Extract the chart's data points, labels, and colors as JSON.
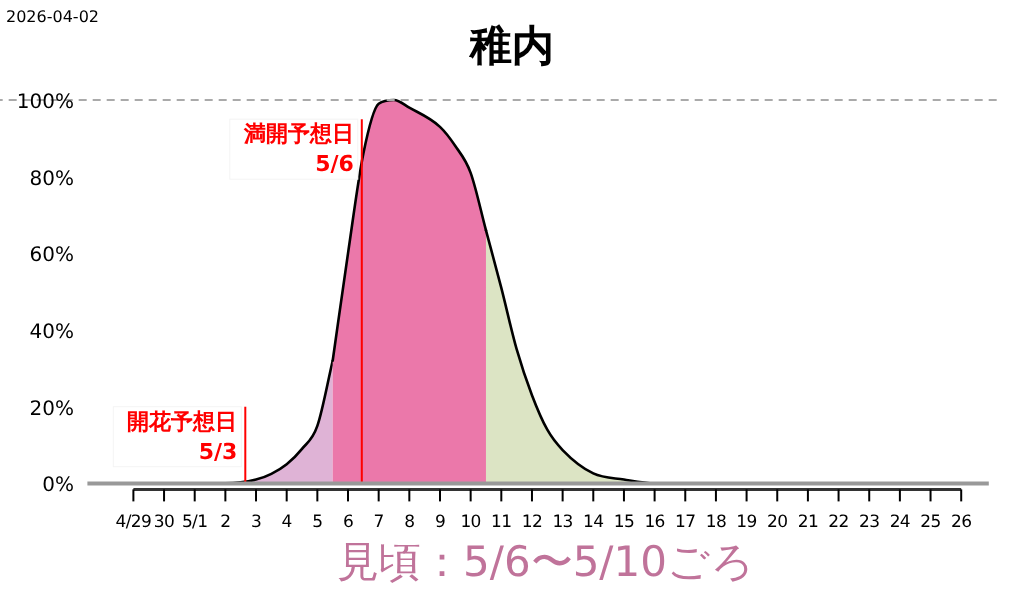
{
  "chart_data": {
    "type": "area",
    "title": "稚内",
    "series": [
      {
        "color": "#dfb3d6",
        "x": [
          "2026-04-29",
          "2026-04-30",
          "2026-05-01",
          "2026-05-02",
          "2026-05-03",
          "2026-05-03T12:00",
          "2026-05-04",
          "2026-05-04T12:00",
          "2026-05-05",
          "2026-05-05T12:00"
        ],
        "values": [
          0,
          0,
          0,
          0,
          1,
          2.5,
          5,
          9,
          15,
          32
        ]
      },
      {
        "color": "#eb78aa",
        "x": [
          "2026-05-05T12:00",
          "2026-05-06",
          "2026-05-06T12:00",
          "2026-05-07",
          "2026-05-07T12:00",
          "2026-05-08",
          "2026-05-09",
          "2026-05-09T12:00",
          "2026-05-10",
          "2026-05-10T12:00"
        ],
        "values": [
          32,
          60,
          86,
          99,
          100,
          98,
          93,
          88,
          81,
          66
        ]
      },
      {
        "color": "#dce4c4",
        "x": [
          "2026-05-10T12:00",
          "2026-05-11",
          "2026-05-11T12:00",
          "2026-05-12",
          "2026-05-12T12:00",
          "2026-05-13",
          "2026-05-14",
          "2026-05-15",
          "2026-05-16",
          "2026-05-17",
          "2026-05-18",
          "2026-05-19",
          "2026-05-20",
          "2026-05-21",
          "2026-05-22",
          "2026-05-23",
          "2026-05-24",
          "2026-05-25",
          "2026-05-26"
        ],
        "values": [
          66,
          51,
          35,
          23,
          14,
          8.7,
          2.6,
          1,
          0,
          0,
          0,
          0,
          0,
          0,
          0,
          0,
          0,
          0,
          0
        ]
      }
    ],
    "xlim": [
      "2026-04-27T12:00",
      "2026-05-26T21:36"
    ],
    "xticks": [
      {
        "value": "2026-04-29",
        "label": "4/29"
      },
      {
        "value": "2026-04-30",
        "label": "30"
      },
      {
        "value": "2026-05-01",
        "label": "5/1"
      },
      {
        "value": "2026-05-02",
        "label": "2"
      },
      {
        "value": "2026-05-03",
        "label": "3"
      },
      {
        "value": "2026-05-04",
        "label": "4"
      },
      {
        "value": "2026-05-05",
        "label": "5"
      },
      {
        "value": "2026-05-06",
        "label": "6"
      },
      {
        "value": "2026-05-07",
        "label": "7"
      },
      {
        "value": "2026-05-08",
        "label": "8"
      },
      {
        "value": "2026-05-09",
        "label": "9"
      },
      {
        "value": "2026-05-10",
        "label": "10"
      },
      {
        "value": "2026-05-11",
        "label": "11"
      },
      {
        "value": "2026-05-12",
        "label": "12"
      },
      {
        "value": "2026-05-13",
        "label": "13"
      },
      {
        "value": "2026-05-14",
        "label": "14"
      },
      {
        "value": "2026-05-15",
        "label": "15"
      },
      {
        "value": "2026-05-16",
        "label": "16"
      },
      {
        "value": "2026-05-17",
        "label": "17"
      },
      {
        "value": "2026-05-18",
        "label": "18"
      },
      {
        "value": "2026-05-19",
        "label": "19"
      },
      {
        "value": "2026-05-20",
        "label": "20"
      },
      {
        "value": "2026-05-21",
        "label": "21"
      },
      {
        "value": "2026-05-22",
        "label": "22"
      },
      {
        "value": "2026-05-23",
        "label": "23"
      },
      {
        "value": "2026-05-24",
        "label": "24"
      },
      {
        "value": "2026-05-25",
        "label": "25"
      },
      {
        "value": "2026-05-26",
        "label": "26"
      }
    ],
    "ylim": [
      0,
      100
    ],
    "yticks": [
      {
        "value": 0,
        "label": "0%"
      },
      {
        "value": 20,
        "label": "20%"
      },
      {
        "value": 40,
        "label": "40%"
      },
      {
        "value": 60,
        "label": "60%"
      },
      {
        "value": 80,
        "label": "80%"
      },
      {
        "value": 100,
        "label": "100%"
      }
    ],
    "ref_lines": [
      {
        "axis": "x",
        "value": "2026-05-02T15:36",
        "label": "開花予想日\n5/3",
        "color": "#ff0000"
      },
      {
        "axis": "x",
        "value": "2026-05-06T10:48",
        "label": "満開予想日\n5/6",
        "color": "#ff0000"
      },
      {
        "axis": "y",
        "value": 100,
        "color": "#aaaaaa",
        "line_style": "dashed"
      }
    ],
    "annotations": [
      "2026-04-02",
      "見頃：5/6〜5/10ごろ"
    ]
  }
}
